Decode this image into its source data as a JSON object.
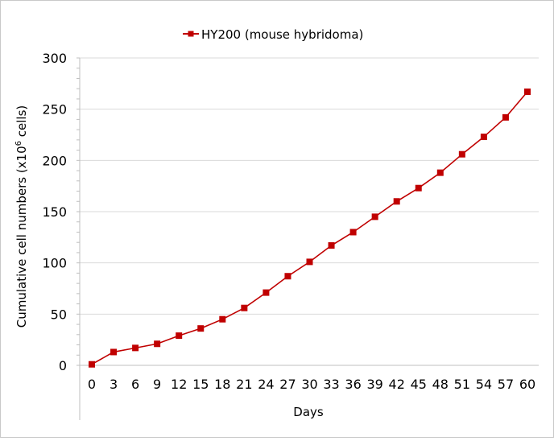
{
  "chart_data": {
    "type": "line",
    "title": "",
    "xlabel": "Days",
    "ylabel": "Cumulative cell numbers (x10",
    "ylabel_superscript": "6",
    "ylabel_suffix": " cells)",
    "ylim": [
      0,
      300
    ],
    "yticks": [
      0,
      50,
      100,
      150,
      200,
      250,
      300
    ],
    "grid": true,
    "legend_position": "top",
    "categories": [
      "0",
      "3",
      "6",
      "9",
      "12",
      "15",
      "18",
      "21",
      "24",
      "27",
      "30",
      "33",
      "36",
      "39",
      "42",
      "45",
      "48",
      "51",
      "54",
      "57",
      "60"
    ],
    "series": [
      {
        "name": "HY200 (mouse hybridoma)",
        "color": "#c00000",
        "marker": "square",
        "x": [
          0,
          3,
          6,
          9,
          12,
          15,
          18,
          21,
          24,
          27,
          30,
          33,
          36,
          39,
          42,
          45,
          48,
          51,
          54,
          57,
          60
        ],
        "values": [
          1,
          13,
          17,
          21,
          29,
          36,
          45,
          56,
          71,
          87,
          101,
          117,
          130,
          145,
          160,
          173,
          188,
          206,
          223,
          242,
          267
        ]
      }
    ]
  }
}
